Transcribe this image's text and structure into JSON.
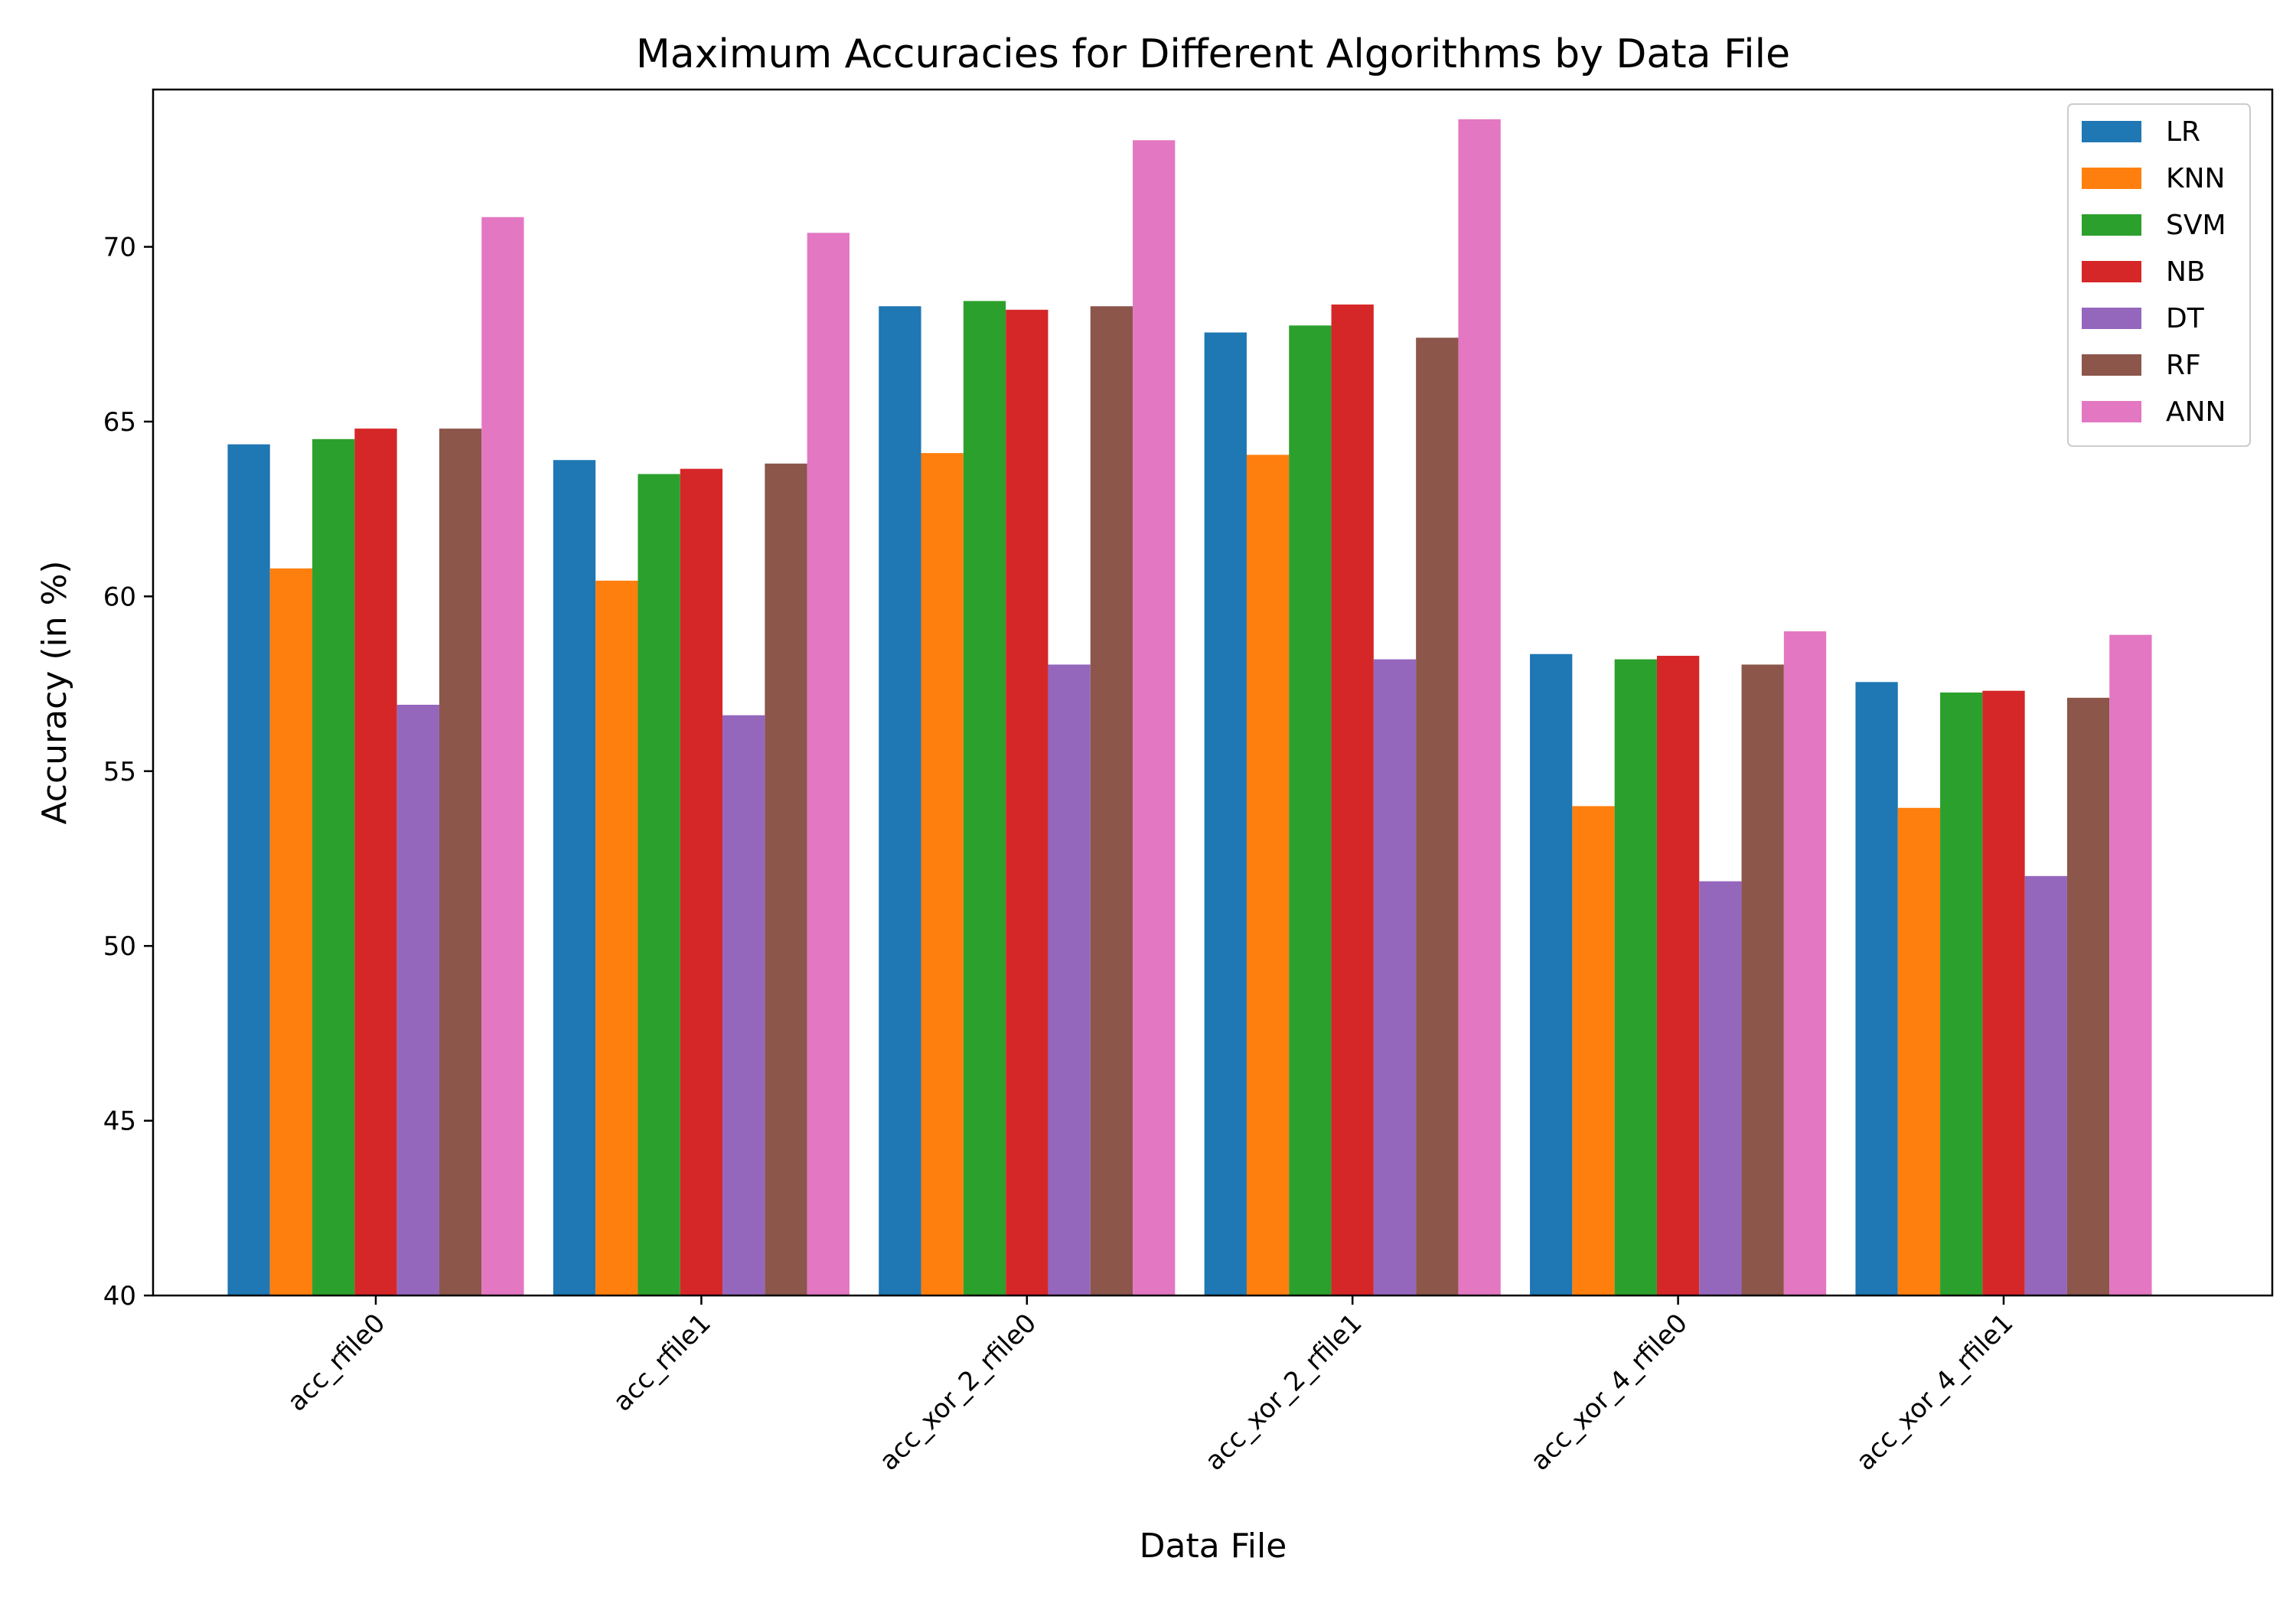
{
  "chart_data": {
    "type": "bar",
    "title": "Maximum Accuracies for Different Algorithms by Data File",
    "xlabel": "Data File",
    "ylabel": "Accuracy (in %)",
    "ylim": [
      40,
      74.5
    ],
    "yticks": [
      40,
      45,
      50,
      55,
      60,
      65,
      70
    ],
    "grid": false,
    "legend_position": "top-right",
    "categories": [
      "acc_rfile0",
      "acc_rfile1",
      "acc_xor_2_rfile0",
      "acc_xor_2_rfile1",
      "acc_xor_4_rfile0",
      "acc_xor_4_rfile1"
    ],
    "series": [
      {
        "name": "LR",
        "color": "#1f77b4",
        "values": [
          64.35,
          63.9,
          68.3,
          67.55,
          58.35,
          57.55
        ]
      },
      {
        "name": "KNN",
        "color": "#ff7f0e",
        "values": [
          60.8,
          60.45,
          64.1,
          64.05,
          54.0,
          53.95
        ]
      },
      {
        "name": "SVM",
        "color": "#2ca02c",
        "values": [
          64.5,
          63.5,
          68.45,
          67.75,
          58.2,
          57.25
        ]
      },
      {
        "name": "NB",
        "color": "#d62728",
        "values": [
          64.8,
          63.65,
          68.2,
          68.35,
          58.3,
          57.3
        ]
      },
      {
        "name": "DT",
        "color": "#9467bd",
        "values": [
          56.9,
          56.6,
          58.05,
          58.2,
          51.85,
          52.0
        ]
      },
      {
        "name": "RF",
        "color": "#8c564b",
        "values": [
          64.8,
          63.8,
          68.3,
          67.4,
          58.05,
          57.1
        ]
      },
      {
        "name": "ANN",
        "color": "#e377c2",
        "values": [
          70.85,
          70.4,
          73.05,
          73.65,
          59.0,
          58.9
        ]
      }
    ]
  }
}
